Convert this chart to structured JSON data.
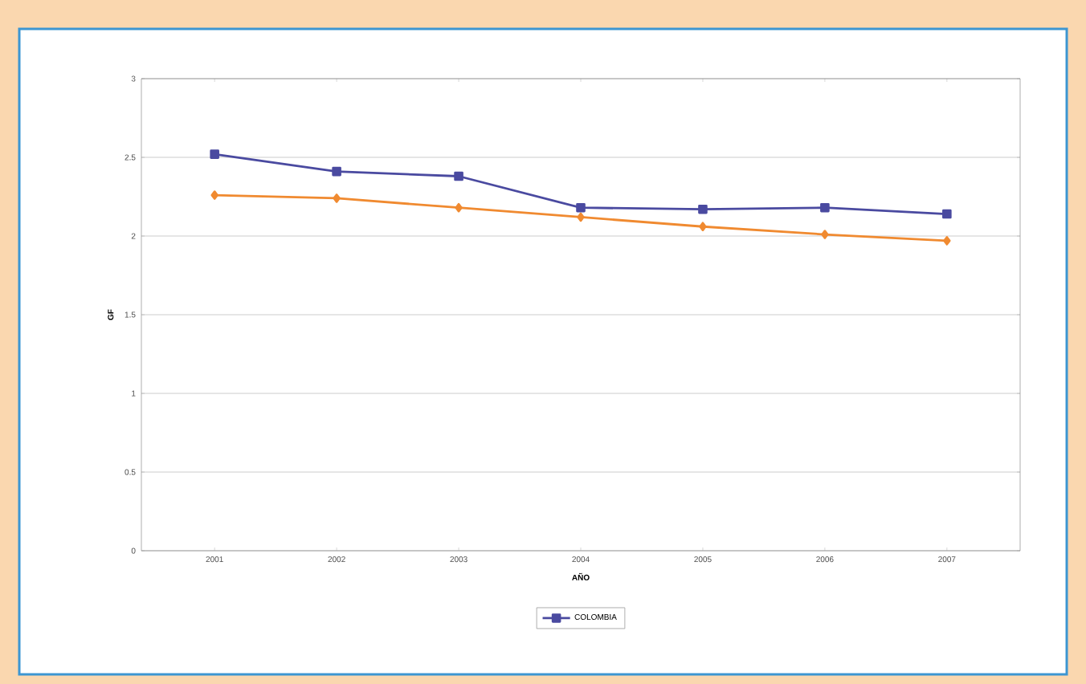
{
  "chart_data": {
    "type": "line",
    "xlabel": "AÑO",
    "ylabel": "GF",
    "categories": [
      "2001",
      "2002",
      "2003",
      "2004",
      "2005",
      "2006",
      "2007"
    ],
    "series": [
      {
        "color": "#f08a30",
        "marker": "diamond",
        "values": [
          2.26,
          2.24,
          2.18,
          2.12,
          2.06,
          2.01,
          1.97
        ]
      },
      {
        "name": "COLOMBIA",
        "color": "#4a4aa0",
        "marker": "square",
        "values": [
          2.52,
          2.41,
          2.38,
          2.18,
          2.17,
          2.18,
          2.14
        ]
      }
    ],
    "ylim": [
      0,
      3
    ],
    "yticks": [
      0,
      0.5,
      1,
      1.5,
      2,
      2.5,
      3
    ],
    "grid": "y",
    "legend": "bottom"
  }
}
